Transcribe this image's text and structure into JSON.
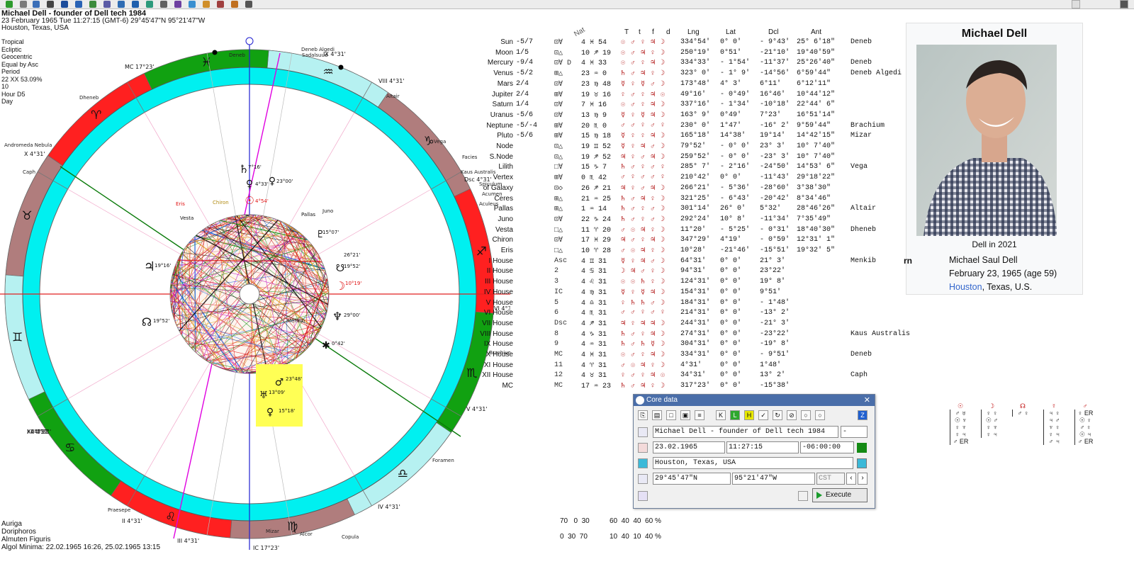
{
  "window": {
    "toolbar_icons": [
      "app-menu",
      "chart",
      "globe",
      "wheel",
      "calendar",
      "find",
      "aspect",
      "print",
      "settings",
      "options",
      "tools",
      "extra"
    ]
  },
  "chart_info": {
    "title": "Michael Dell - founder of Dell tech 1984",
    "datetime": "23 February 1965  Tue  11:27:15 (GMT-6) 29°45'47\"N  95°21'47\"W",
    "place": "Houston, Texas, USA"
  },
  "chart_settings": {
    "lines": [
      "Tropical",
      "Ecliptic",
      "Geocentric",
      "Equal by Asc",
      "Period",
      "22 XX    53.09%",
      "10",
      "Hour D5",
      "Day"
    ]
  },
  "wheel": {
    "house_labels": [
      "I 4°31'",
      "II 4°31'",
      "III 4°31'",
      "IC 17°23'",
      "IV 4°31'",
      "V 4°31'",
      "VI 4°31'",
      "Dsc 4°31'",
      "VIII 4°31'",
      "IX 4°31'",
      "MC 17°23'",
      "X 4°31'",
      "XI 4°31'",
      "XII 4°31'"
    ],
    "star_labels": [
      "Deneb",
      "Deneb Algedi",
      "Sadalsuud",
      "Altair",
      "Vega",
      "Facies",
      "Kaus Australis",
      "Spiculum",
      "Aculeus",
      "Acumen",
      "Dheneb",
      "Andromeda Nebula",
      "Caph",
      "Brachium",
      "Foramen",
      "Copula",
      "Alcor",
      "Mizar",
      "Praesepe",
      "Menkib"
    ],
    "planet_labels": [
      "4°33'",
      "23°00'",
      "7°16'",
      "4°54'",
      "Eris",
      "Chiron",
      "Vesta",
      "Pallas",
      "Juno",
      "15°07'",
      "26°21'",
      "19°52'",
      "10°19'",
      "29°00'",
      "0°42'",
      "23°48'",
      "13°09'",
      "15°18'",
      "19°16'",
      "19°52'"
    ]
  },
  "planet_table": {
    "header": {
      "nat": "Nat",
      "T": "T",
      "t": "t",
      "f": "f",
      "d": "d",
      "lng": "Lng",
      "lat": "Lat",
      "dcl": "Dcl",
      "ant": "Ant"
    },
    "rows": [
      {
        "name": "Sun",
        "score": "-5/7",
        "sym": "⊡∀",
        "nat": "4 ♓ 54",
        "dig": "☉♂♀♃☽",
        "lng": "334°54'",
        "lat": "0° 0'",
        "dcl": "- 9°43'",
        "ant": "25° 6'18\"",
        "star": "Deneb"
      },
      {
        "name": "Moon",
        "score": "1/5",
        "sym": "⊡△",
        "nat": "10 ♐ 19",
        "dig": "☉♂♃♀☽",
        "lng": "250°19'",
        "lat": "0°51'",
        "dcl": "-21°10'",
        "ant": "19°40'59\"",
        "star": ""
      },
      {
        "name": "Mercury",
        "score": "-9/4",
        "sym": "⊡∀ D",
        "nat": "4 ♓ 33",
        "dig": "☉♂♀♃☽",
        "lng": "334°33'",
        "lat": "- 1°54'",
        "dcl": "-11°37'",
        "ant": "25°26'40\"",
        "star": "Deneb"
      },
      {
        "name": "Venus",
        "score": "-5/2",
        "sym": "⊞△",
        "nat": "23 ♒ 0",
        "dig": "♄♂♃♀☽",
        "lng": "323° 0'",
        "lat": "- 1° 9'",
        "dcl": "-14°56'",
        "ant": "6°59'44\"",
        "star": "Deneb Algedi"
      },
      {
        "name": "Mars",
        "score": "2/4",
        "sym": "⊡∀",
        "nat": "23 ♍ 48",
        "dig": "☿♀☿♂☽",
        "lng": "173°48'",
        "lat": "4° 3'",
        "dcl": "6°11'",
        "ant": "6°12'11\"",
        "star": ""
      },
      {
        "name": "Jupiter",
        "score": "2/4",
        "sym": "⊞∀",
        "nat": "19 ♉ 16",
        "dig": "♀♂♀♃☉",
        "lng": "49°16'",
        "lat": "- 0°49'",
        "dcl": "16°46'",
        "ant": "10°44'12\"",
        "star": ""
      },
      {
        "name": "Saturn",
        "score": "1/4",
        "sym": "⊡∀",
        "nat": "7 ♓ 16",
        "dig": "☉♂♀♃☽",
        "lng": "337°16'",
        "lat": "- 1°34'",
        "dcl": "-10°18'",
        "ant": "22°44' 6\"",
        "star": ""
      },
      {
        "name": "Uranus",
        "score": "-5/6",
        "sym": "⊡∀",
        "nat": "13 ♍ 9",
        "dig": "☿♀☿♃☽",
        "lng": "163° 9'",
        "lat": "0°49'",
        "dcl": "7°23'",
        "ant": "16°51'14\"",
        "star": ""
      },
      {
        "name": "Neptune",
        "score": "-5/-4",
        "sym": "⊞∀",
        "nat": "20 ♏ 0",
        "dig": "♂♂♀♂♀",
        "lng": "230° 0'",
        "lat": "1°47'",
        "dcl": "-16° 2'",
        "ant": "9°59'44\"",
        "star": "Brachium"
      },
      {
        "name": "Pluto",
        "score": "-5/6",
        "sym": "⊞∀",
        "nat": "15 ♍ 18",
        "dig": "☿♀♀♃☽",
        "lng": "165°18'",
        "lat": "14°38'",
        "dcl": "19°14'",
        "ant": "14°42'15\"",
        "star": "Mizar"
      },
      {
        "name": "Node",
        "score": "",
        "sym": "⊡△",
        "nat": "19 ♊ 52",
        "dig": "☿♀♃♂☽",
        "lng": "79°52'",
        "lat": "- 0° 0'",
        "dcl": "23° 3'",
        "ant": "10° 7'40\"",
        "star": ""
      },
      {
        "name": "S.Node",
        "score": "",
        "sym": "⊡△",
        "nat": "19 ♐ 52",
        "dig": "♃♀♂♃☽",
        "lng": "259°52'",
        "lat": "- 0° 0'",
        "dcl": "-23° 3'",
        "ant": "10° 7'40\"",
        "star": ""
      },
      {
        "name": "Lilith",
        "score": "",
        "sym": "□∀",
        "nat": "15 ♑ 7",
        "dig": "♄♂♀♂♀",
        "lng": "285° 7'",
        "lat": "- 2°16'",
        "dcl": "-24°50'",
        "ant": "14°53' 6\"",
        "star": "Vega"
      },
      {
        "name": "Vertex",
        "score": "",
        "sym": "⊞∀",
        "nat": "0 ♏ 42",
        "dig": "♂♀♂♂♀",
        "lng": "210°42'",
        "lat": "0° 0'",
        "dcl": "-11°43'",
        "ant": "29°18'22\"",
        "star": ""
      },
      {
        "name": "of Galaxy",
        "score": "",
        "sym": "⊡◇",
        "nat": "26 ♐ 21",
        "dig": "♃♀♂♃☽",
        "lng": "266°21'",
        "lat": "- 5°36'",
        "dcl": "-28°60'",
        "ant": "3°38'30\"",
        "star": ""
      },
      {
        "name": "Ceres",
        "score": "",
        "sym": "⊞△",
        "nat": "21 ♒ 25",
        "dig": "♄♂♃♀☽",
        "lng": "321°25'",
        "lat": "- 6°43'",
        "dcl": "-20°42'",
        "ant": "8°34'46\"",
        "star": ""
      },
      {
        "name": "Pallas",
        "score": "",
        "sym": "⊞△",
        "nat": "1 ♒ 14",
        "dig": "♄♂♀♂☽",
        "lng": "301°14'",
        "lat": "26° 0'",
        "dcl": "5°32'",
        "ant": "28°46'26\"",
        "star": "Altair"
      },
      {
        "name": "Juno",
        "score": "",
        "sym": "⊡∀",
        "nat": "22 ♑ 24",
        "dig": "♄♂♀♂☽",
        "lng": "292°24'",
        "lat": "10° 8'",
        "dcl": "-11°34'",
        "ant": "7°35'49\"",
        "star": ""
      },
      {
        "name": "Vesta",
        "score": "",
        "sym": "□△",
        "nat": "11 ♈ 20",
        "dig": "♂☉♃♀☽",
        "lng": "11°20'",
        "lat": "- 5°25'",
        "dcl": "- 0°31'",
        "ant": "18°40'30\"",
        "star": "Dheneb"
      },
      {
        "name": "Chiron",
        "score": "",
        "sym": "⊡∀",
        "nat": "17 ♓ 29",
        "dig": "♃♂♀♃☽",
        "lng": "347°29'",
        "lat": "4°19'",
        "dcl": "- 0°59'",
        "ant": "12°31' 1\"",
        "star": ""
      },
      {
        "name": "Eris",
        "score": "",
        "sym": "□△",
        "nat": "10 ♈ 28",
        "dig": "♂☉♃♀☽",
        "lng": "10°28'",
        "lat": "-21°46'",
        "dcl": "-15°51'",
        "ant": "19°32' 5\"",
        "star": ""
      },
      {
        "name": "I House",
        "score": "",
        "sym": "Asc",
        "nat": "4 ♊ 31",
        "dig": "☿♀♃♂☽",
        "lng": "64°31'",
        "lat": "0° 0'",
        "dcl": "21° 3'",
        "ant": "",
        "star": "Menkib"
      },
      {
        "name": "II House",
        "score": "",
        "sym": "2",
        "nat": "4 ♋ 31",
        "dig": "☽♃♂♀☽",
        "lng": "94°31'",
        "lat": "0° 0'",
        "dcl": "23°22'",
        "ant": "",
        "star": ""
      },
      {
        "name": "III House",
        "score": "",
        "sym": "3",
        "nat": "4 ♌ 31",
        "dig": "☉☉♄♀☽",
        "lng": "124°31'",
        "lat": "0° 0'",
        "dcl": "19° 8'",
        "ant": "",
        "star": ""
      },
      {
        "name": "IV House",
        "score": "",
        "sym": "IC",
        "nat": "4 ♍ 31",
        "dig": "☿♀☿♃☽",
        "lng": "154°31'",
        "lat": "0° 0'",
        "dcl": "9°51'",
        "ant": "",
        "star": ""
      },
      {
        "name": "V House",
        "score": "",
        "sym": "5",
        "nat": "4 ♎ 31",
        "dig": "♀♄♄♂☽",
        "lng": "184°31'",
        "lat": "0° 0'",
        "dcl": "- 1°48'",
        "ant": "",
        "star": ""
      },
      {
        "name": "VI House",
        "score": "",
        "sym": "6",
        "nat": "4 ♏ 31",
        "dig": "♂♂♀♂♀",
        "lng": "214°31'",
        "lat": "0° 0'",
        "dcl": "-13° 2'",
        "ant": "",
        "star": ""
      },
      {
        "name": "VII House",
        "score": "",
        "sym": "Dsc",
        "nat": "4 ♐ 31",
        "dig": "♃♀♃♃☽",
        "lng": "244°31'",
        "lat": "0° 0'",
        "dcl": "-21° 3'",
        "ant": "",
        "star": ""
      },
      {
        "name": "VIII House",
        "score": "",
        "sym": "8",
        "nat": "4 ♑ 31",
        "dig": "♄♂♀♃☽",
        "lng": "274°31'",
        "lat": "0° 0'",
        "dcl": "-23°22'",
        "ant": "",
        "star": "Kaus Australis"
      },
      {
        "name": "IX House",
        "score": "",
        "sym": "9",
        "nat": "4 ♒ 31",
        "dig": "♄♂♄☿☽",
        "lng": "304°31'",
        "lat": "0° 0'",
        "dcl": "-19° 8'",
        "ant": "",
        "star": ""
      },
      {
        "name": "X House",
        "score": "",
        "sym": "MC",
        "nat": "4 ♓ 31",
        "dig": "☉♂♀♃☽",
        "lng": "334°31'",
        "lat": "0° 0'",
        "dcl": "- 9°51'",
        "ant": "",
        "star": "Deneb"
      },
      {
        "name": "XI House",
        "score": "",
        "sym": "11",
        "nat": "4 ♈ 31",
        "dig": "♂☉♃♀☽",
        "lng": "4°31'",
        "lat": "0° 0'",
        "dcl": "1°48'",
        "ant": "",
        "star": ""
      },
      {
        "name": "XII House",
        "score": "",
        "sym": "12",
        "nat": "4 ♉ 31",
        "dig": "♀♂♀♃☉",
        "lng": "34°31'",
        "lat": "0° 0'",
        "dcl": "13° 2'",
        "ant": "",
        "star": "Caph"
      },
      {
        "name": "MC",
        "score": "",
        "sym": "MC",
        "nat": "17 ♒ 23",
        "dig": "♄♂♃♀☽",
        "lng": "317°23'",
        "lat": "0° 0'",
        "dcl": "-15°38'",
        "ant": "",
        "star": ""
      }
    ]
  },
  "wiki": {
    "title": "Michael Dell",
    "caption": "Dell in 2021",
    "born_label": "rn",
    "name": "Michael Saul Dell",
    "birth": "February 23, 1965 (age 59)",
    "place_link": "Houston",
    "place_rest": ", Texas, U.S."
  },
  "core_dialog": {
    "title": "Core data",
    "name_value": "Michael Dell - founder of Dell tech 1984",
    "gender_value": "-",
    "date_value": "23.02.1965",
    "time_value": "11:27:15",
    "tz_value": "-06:00:00",
    "place_value": "Houston, Texas, USA",
    "lat_value": "29°45'47\"N",
    "lon_value": "95°21'47\"W",
    "zone_placeholder": "CST",
    "execute_label": "Execute"
  },
  "bottom_left": {
    "auriga": "Auriga",
    "doriphoros": "Doriphoros",
    "almuten": "Almuten Figuris",
    "algol": "Algol Minima: 22.02.1965 16:26, 25.02.1965 13:15"
  },
  "bottom_stats": {
    "row1": "70   0  30",
    "row1b": "60  40  40  60 %",
    "row2": "0  30  70",
    "row2b": "10  40  10  40 %"
  },
  "aspect_grids": {
    "columns": [
      {
        "head": "☉",
        "lines": [
          "♂ ♅",
          "☉ ♆",
          "♀ ♆",
          "♀ ♃",
          "♂ ER"
        ]
      },
      {
        "head": "☽",
        "lines": [
          "♀ ♀",
          "☉ ♂",
          "♀ ♆",
          "♀ ♃"
        ]
      },
      {
        "head": "☊",
        "lines": [
          "♂ ♀"
        ]
      },
      {
        "head": "☿",
        "lines": [
          "♃ ♀",
          "♃ ♂",
          "♆ ♀",
          "♀ ♃",
          "♂ ♃"
        ]
      },
      {
        "head": "♂",
        "lines": [
          "♀ ER",
          "☉ ♀",
          "♂ ♀",
          "☉ ♃",
          "♂ ER"
        ]
      }
    ]
  }
}
